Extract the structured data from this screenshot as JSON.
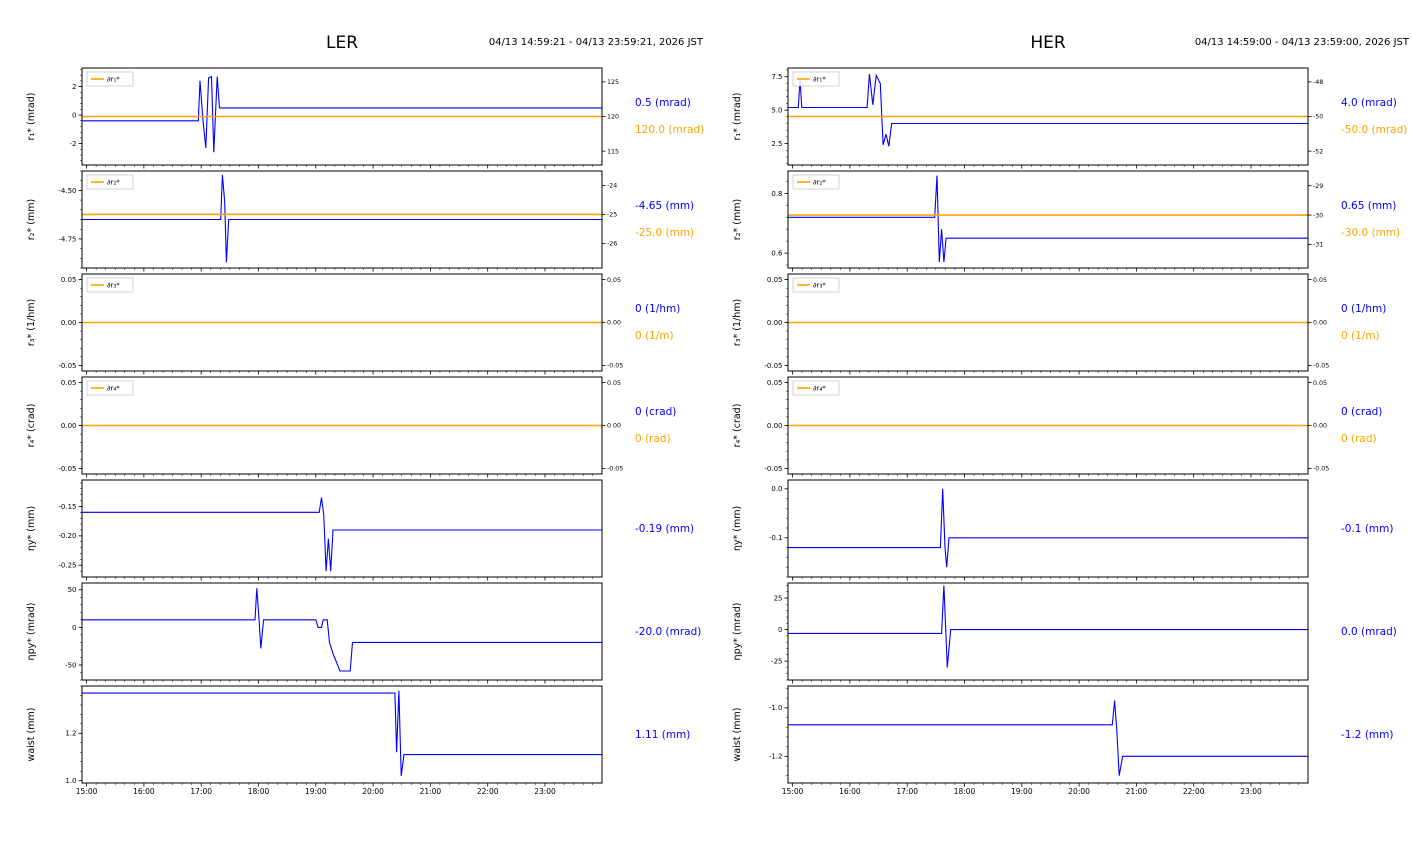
{
  "page": {
    "bg": "#ffffff"
  },
  "colors": {
    "blue": "#0000ff",
    "orange": "#ffa500",
    "frame": "#000000",
    "text": "#000000",
    "legend_border": "#c8c8c8"
  },
  "chart_data": [
    {
      "type": "line",
      "title": "LER",
      "timerange": "04/13 14:59:21 - 04/13 23:59:21, 2026 JST",
      "x_range": [
        14.92,
        23.995
      ],
      "x_ticks": [
        15,
        16,
        17,
        18,
        19,
        20,
        21,
        22,
        23
      ],
      "x_tick_labels": [
        "15:00",
        "16:00",
        "17:00",
        "18:00",
        "19:00",
        "20:00",
        "21:00",
        "22:00",
        "23:00"
      ],
      "plots": [
        {
          "name": "r1",
          "ylabel": "r₁* (mrad)",
          "legend": "∂r₁*",
          "ylim": [
            -3.5,
            3.3
          ],
          "yticks": [
            2,
            0,
            -2
          ],
          "ytick_labels": [
            "2",
            "0",
            "-2"
          ],
          "right_ylim": [
            113,
            127
          ],
          "right_yticks": [
            125,
            120,
            115
          ],
          "right_ytick_labels": [
            "125",
            "120",
            "115"
          ],
          "orange_value": 120,
          "series": [
            [
              14.92,
              -0.4
            ],
            [
              16.95,
              -0.4
            ],
            [
              16.98,
              2.4
            ],
            [
              17.03,
              -0.3
            ],
            [
              17.08,
              -2.3
            ],
            [
              17.13,
              2.6
            ],
            [
              17.18,
              2.7
            ],
            [
              17.22,
              -2.6
            ],
            [
              17.28,
              2.7
            ],
            [
              17.32,
              0.5
            ],
            [
              23.995,
              0.5
            ]
          ],
          "blue_label": "0.5 (mrad)",
          "orange_label": "120.0 (mrad)"
        },
        {
          "name": "r2",
          "ylabel": "r₂* (mm)",
          "legend": "∂r₂*",
          "ylim": [
            -4.9,
            -4.4
          ],
          "yticks": [
            -4.5,
            -4.75
          ],
          "ytick_labels": [
            "-4.50",
            "-4.75"
          ],
          "right_ylim": [
            -26.85,
            -23.5
          ],
          "right_yticks": [
            -24,
            -25,
            -26
          ],
          "right_ytick_labels": [
            "-24",
            "-25",
            "-26"
          ],
          "orange_value": -25,
          "series": [
            [
              14.92,
              -4.65
            ],
            [
              17.34,
              -4.65
            ],
            [
              17.37,
              -4.42
            ],
            [
              17.41,
              -4.56
            ],
            [
              17.44,
              -4.87
            ],
            [
              17.48,
              -4.65
            ],
            [
              23.995,
              -4.65
            ]
          ],
          "blue_label": "-4.65 (mm)",
          "orange_label": "-25.0 (mm)"
        },
        {
          "name": "r3",
          "ylabel": "r₃* (1/hm)",
          "legend": "∂r₃*",
          "ylim": [
            -0.0565,
            0.0565
          ],
          "yticks": [
            0.05,
            0,
            -0.05
          ],
          "ytick_labels": [
            "0.05",
            "0.00",
            "-0.05"
          ],
          "right_ylim": [
            -0.0565,
            0.0565
          ],
          "right_yticks": [
            0.05,
            0,
            -0.05
          ],
          "right_ytick_labels": [
            "0.05",
            "0.00",
            "-0.05"
          ],
          "orange_value": 0,
          "series": [
            [
              14.92,
              0
            ],
            [
              23.995,
              0
            ]
          ],
          "blue_label": "0 (1/hm)",
          "orange_label": "0 (1/m)"
        },
        {
          "name": "r4",
          "ylabel": "r₄* (crad)",
          "legend": "∂r₄*",
          "ylim": [
            -0.0565,
            0.0565
          ],
          "yticks": [
            0.05,
            0,
            -0.05
          ],
          "ytick_labels": [
            "0.05",
            "0.00",
            "-0.05"
          ],
          "right_ylim": [
            -0.0565,
            0.0565
          ],
          "right_yticks": [
            0.05,
            0,
            -0.05
          ],
          "right_ytick_labels": [
            "0.05",
            "0.00",
            "-0.05"
          ],
          "orange_value": 0,
          "series": [
            [
              14.92,
              0
            ],
            [
              23.995,
              0
            ]
          ],
          "blue_label": "0 (crad)",
          "orange_label": "0 (rad)"
        },
        {
          "name": "eta-y",
          "ylabel": "ηy* (mm)",
          "ylim": [
            -0.27,
            -0.105
          ],
          "yticks": [
            -0.15,
            -0.2,
            -0.25
          ],
          "ytick_labels": [
            "-0.15",
            "-0.20",
            "-0.25"
          ],
          "series": [
            [
              14.92,
              -0.16
            ],
            [
              19.06,
              -0.16
            ],
            [
              19.1,
              -0.135
            ],
            [
              19.14,
              -0.165
            ],
            [
              19.18,
              -0.26
            ],
            [
              19.22,
              -0.205
            ],
            [
              19.26,
              -0.26
            ],
            [
              19.3,
              -0.19
            ],
            [
              23.995,
              -0.19
            ]
          ],
          "blue_label": "-0.19 (mm)"
        },
        {
          "name": "eta-py",
          "ylabel": "ηpy* (mrad)",
          "ylim": [
            -70,
            59
          ],
          "yticks": [
            50,
            0,
            -50
          ],
          "ytick_labels": [
            "50",
            "0",
            "-50"
          ],
          "series": [
            [
              14.92,
              10
            ],
            [
              17.94,
              10
            ],
            [
              17.97,
              52
            ],
            [
              18.01,
              10
            ],
            [
              18.04,
              -28
            ],
            [
              18.09,
              10
            ],
            [
              19.0,
              10
            ],
            [
              19.04,
              0
            ],
            [
              19.1,
              0
            ],
            [
              19.13,
              10
            ],
            [
              19.2,
              10
            ],
            [
              19.24,
              -20
            ],
            [
              19.3,
              -35
            ],
            [
              19.36,
              -46
            ],
            [
              19.42,
              -58
            ],
            [
              19.6,
              -58
            ],
            [
              19.64,
              -20
            ],
            [
              23.995,
              -20
            ]
          ],
          "blue_label": "-20.0 (mrad)"
        },
        {
          "name": "waist",
          "ylabel": "waist (mm)",
          "ylim": [
            0.99,
            1.4
          ],
          "yticks": [
            1.2,
            1.0
          ],
          "ytick_labels": [
            "1.2",
            "1.0"
          ],
          "series": [
            [
              14.92,
              1.37
            ],
            [
              20.38,
              1.37
            ],
            [
              20.41,
              1.12
            ],
            [
              20.45,
              1.38
            ],
            [
              20.49,
              1.02
            ],
            [
              20.54,
              1.11
            ],
            [
              23.995,
              1.11
            ]
          ],
          "blue_label": "1.11 (mm)"
        }
      ]
    },
    {
      "type": "line",
      "title": "HER",
      "timerange": "04/13 14:59:00 - 04/13 23:59:00, 2026 JST",
      "x_range": [
        14.92,
        23.995
      ],
      "x_ticks": [
        15,
        16,
        17,
        18,
        19,
        20,
        21,
        22,
        23
      ],
      "x_tick_labels": [
        "15:00",
        "16:00",
        "17:00",
        "18:00",
        "19:00",
        "20:00",
        "21:00",
        "22:00",
        "23:00"
      ],
      "plots": [
        {
          "name": "r1",
          "ylabel": "r₁* (mrad)",
          "legend": "∂r₁*",
          "ylim": [
            0.9,
            8.15
          ],
          "yticks": [
            7.5,
            5.0,
            2.5
          ],
          "ytick_labels": [
            "7.5",
            "5.0",
            "2.5"
          ],
          "right_ylim": [
            -52.8,
            -47.2
          ],
          "right_yticks": [
            -48,
            -50,
            -52
          ],
          "right_ytick_labels": [
            "-48",
            "-50",
            "-52"
          ],
          "orange_value": -50,
          "series": [
            [
              14.92,
              5.2
            ],
            [
              15.1,
              5.2
            ],
            [
              15.13,
              7.3
            ],
            [
              15.16,
              5.2
            ],
            [
              16.3,
              5.2
            ],
            [
              16.34,
              7.7
            ],
            [
              16.4,
              5.4
            ],
            [
              16.46,
              7.6
            ],
            [
              16.53,
              7.0
            ],
            [
              16.58,
              2.4
            ],
            [
              16.63,
              3.2
            ],
            [
              16.68,
              2.3
            ],
            [
              16.73,
              4.0
            ],
            [
              23.995,
              4.0
            ]
          ],
          "blue_label": "4.0 (mrad)",
          "orange_label": "-50.0 (mrad)"
        },
        {
          "name": "r2",
          "ylabel": "r₂* (mm)",
          "legend": "∂r₂*",
          "ylim": [
            0.55,
            0.875
          ],
          "yticks": [
            0.8,
            0.6
          ],
          "ytick_labels": [
            "0.8",
            "0.6"
          ],
          "right_ylim": [
            -31.8,
            -28.5
          ],
          "right_yticks": [
            -29,
            -30,
            -31
          ],
          "right_ytick_labels": [
            "-29",
            "-30",
            "-31"
          ],
          "orange_value": -30,
          "series": [
            [
              14.92,
              0.72
            ],
            [
              17.48,
              0.72
            ],
            [
              17.52,
              0.86
            ],
            [
              17.56,
              0.57
            ],
            [
              17.6,
              0.68
            ],
            [
              17.64,
              0.57
            ],
            [
              17.68,
              0.65
            ],
            [
              23.995,
              0.65
            ]
          ],
          "blue_label": "0.65 (mm)",
          "orange_label": "-30.0 (mm)"
        },
        {
          "name": "r3",
          "ylabel": "r₃* (1/hm)",
          "legend": "∂r₃*",
          "ylim": [
            -0.0565,
            0.0565
          ],
          "yticks": [
            0.05,
            0,
            -0.05
          ],
          "ytick_labels": [
            "0.05",
            "0.00",
            "-0.05"
          ],
          "right_ylim": [
            -0.0565,
            0.0565
          ],
          "right_yticks": [
            0.05,
            0,
            -0.05
          ],
          "right_ytick_labels": [
            "0.05",
            "0.00",
            "-0.05"
          ],
          "orange_value": 0,
          "series": [
            [
              14.92,
              0
            ],
            [
              23.995,
              0
            ]
          ],
          "blue_label": "0 (1/hm)",
          "orange_label": "0 (1/m)"
        },
        {
          "name": "r4",
          "ylabel": "r₄* (crad)",
          "legend": "∂r₄*",
          "ylim": [
            -0.0565,
            0.0565
          ],
          "yticks": [
            0.05,
            0,
            -0.05
          ],
          "ytick_labels": [
            "0.05",
            "0.00",
            "-0.05"
          ],
          "right_ylim": [
            -0.0565,
            0.0565
          ],
          "right_yticks": [
            0.05,
            0,
            -0.05
          ],
          "right_ytick_labels": [
            "0.05",
            "0.00",
            "-0.05"
          ],
          "orange_value": 0,
          "series": [
            [
              14.92,
              0
            ],
            [
              23.995,
              0
            ]
          ],
          "blue_label": "0 (crad)",
          "orange_label": "0 (rad)"
        },
        {
          "name": "eta-y",
          "ylabel": "ηy* (mm)",
          "ylim": [
            -0.18,
            0.018
          ],
          "yticks": [
            0.0,
            -0.1
          ],
          "ytick_labels": [
            "0.0",
            "-0.1"
          ],
          "series": [
            [
              14.92,
              -0.12
            ],
            [
              17.58,
              -0.12
            ],
            [
              17.62,
              0.0
            ],
            [
              17.66,
              -0.12
            ],
            [
              17.69,
              -0.16
            ],
            [
              17.73,
              -0.1
            ],
            [
              23.995,
              -0.1
            ]
          ],
          "blue_label": "-0.1 (mm)"
        },
        {
          "name": "eta-py",
          "ylabel": "ηpy* (mrad)",
          "ylim": [
            -40,
            37
          ],
          "yticks": [
            25,
            0,
            -25
          ],
          "ytick_labels": [
            "25",
            "0",
            "-25"
          ],
          "series": [
            [
              14.92,
              -3
            ],
            [
              17.6,
              -3
            ],
            [
              17.64,
              35
            ],
            [
              17.7,
              -30
            ],
            [
              17.76,
              0
            ],
            [
              23.995,
              0
            ]
          ],
          "blue_label": "0.0 (mrad)"
        },
        {
          "name": "waist",
          "ylabel": "waist (mm)",
          "ylim": [
            -1.31,
            -0.91
          ],
          "yticks": [
            -1.0,
            -1.2
          ],
          "ytick_labels": [
            "-1.0",
            "-1.2"
          ],
          "series": [
            [
              14.92,
              -1.07
            ],
            [
              20.58,
              -1.07
            ],
            [
              20.62,
              -0.97
            ],
            [
              20.66,
              -1.1
            ],
            [
              20.7,
              -1.28
            ],
            [
              20.76,
              -1.2
            ],
            [
              23.995,
              -1.2
            ]
          ],
          "blue_label": "-1.2 (mm)"
        }
      ]
    }
  ]
}
